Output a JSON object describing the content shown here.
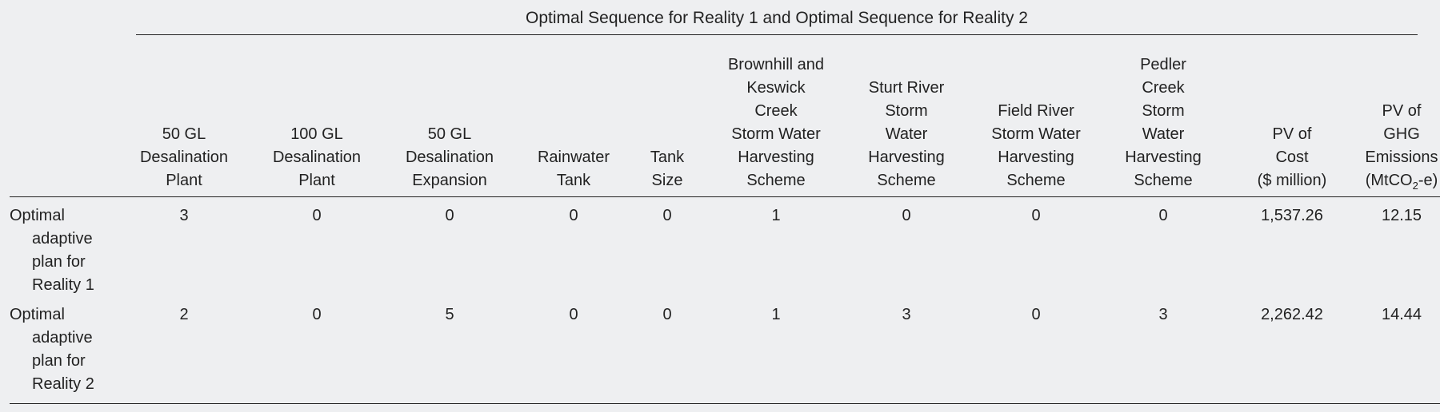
{
  "table": {
    "spanning_header": "Optimal Sequence for Reality 1 and Optimal Sequence for Reality 2",
    "columns": [
      {
        "lines": [
          "50 GL",
          "Desalination",
          "Plant"
        ]
      },
      {
        "lines": [
          "100 GL",
          "Desalination",
          "Plant"
        ]
      },
      {
        "lines": [
          "50 GL",
          "Desalination",
          "Expansion"
        ]
      },
      {
        "lines": [
          "Rainwater",
          "Tank"
        ]
      },
      {
        "lines": [
          "Tank",
          "Size"
        ]
      },
      {
        "lines": [
          "Brownhill and",
          "Keswick",
          "Creek",
          "Storm Water",
          "Harvesting",
          "Scheme"
        ]
      },
      {
        "lines": [
          "Sturt River",
          "Storm",
          "Water",
          "Harvesting",
          "Scheme"
        ]
      },
      {
        "lines": [
          "Field River",
          "Storm Water",
          "Harvesting",
          "Scheme"
        ]
      },
      {
        "lines": [
          "Pedler",
          "Creek",
          "Storm",
          "Water",
          "Harvesting",
          "Scheme"
        ]
      },
      {
        "lines": [
          "PV of",
          "Cost",
          "($ million)"
        ]
      },
      {
        "lines": [
          "PV of",
          "GHG",
          "Emissions"
        ],
        "unit_prefix": "(MtCO",
        "unit_sub": "2",
        "unit_suffix": "-e)"
      }
    ],
    "rows": [
      {
        "label_lines": [
          "Optimal",
          "adaptive",
          "plan for",
          "Reality 1"
        ],
        "values": [
          "3",
          "0",
          "0",
          "0",
          "0",
          "1",
          "0",
          "0",
          "0",
          "1,537.26",
          "12.15"
        ]
      },
      {
        "label_lines": [
          "Optimal",
          "adaptive",
          "plan for",
          "Reality 2"
        ],
        "values": [
          "2",
          "0",
          "5",
          "0",
          "0",
          "1",
          "3",
          "0",
          "3",
          "2,262.42",
          "14.44"
        ]
      }
    ]
  }
}
